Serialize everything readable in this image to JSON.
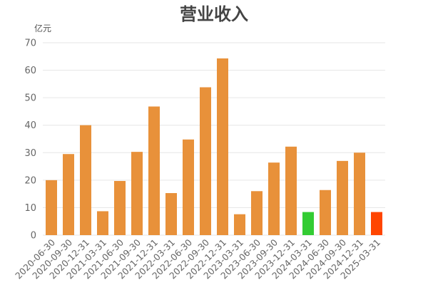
{
  "chart_data": {
    "type": "bar",
    "title": "营业收入",
    "unit_label": "亿元",
    "categories": [
      "2020-06-30",
      "2020-09-30",
      "2020-12-31",
      "2021-03-31",
      "2021-06-30",
      "2021-09-30",
      "2021-12-31",
      "2022-03-31",
      "2022-06-30",
      "2022-09-30",
      "2022-12-31",
      "2023-03-31",
      "2023-06-30",
      "2023-09-30",
      "2023-12-31",
      "2024-03-31",
      "2024-06-30",
      "2024-09-30",
      "2024-12-31",
      "2025-03-31"
    ],
    "values": [
      20,
      29.5,
      40,
      8.7,
      19.7,
      30.3,
      46.8,
      15.3,
      34.8,
      53.8,
      64.3,
      7.6,
      16,
      26.4,
      32.2,
      8.4,
      16.4,
      27,
      30,
      8.4
    ],
    "ylim": [
      0,
      70
    ],
    "yticks": [
      0,
      10,
      20,
      30,
      40,
      50,
      60,
      70
    ],
    "grid": true,
    "colors": {
      "default": "#E8913A",
      "highlight_green": "#33CC33",
      "highlight_red": "#FF4500"
    },
    "bar_colors": [
      "default",
      "default",
      "default",
      "default",
      "default",
      "default",
      "default",
      "default",
      "default",
      "default",
      "default",
      "default",
      "default",
      "default",
      "default",
      "highlight_green",
      "default",
      "default",
      "default",
      "highlight_red"
    ]
  }
}
